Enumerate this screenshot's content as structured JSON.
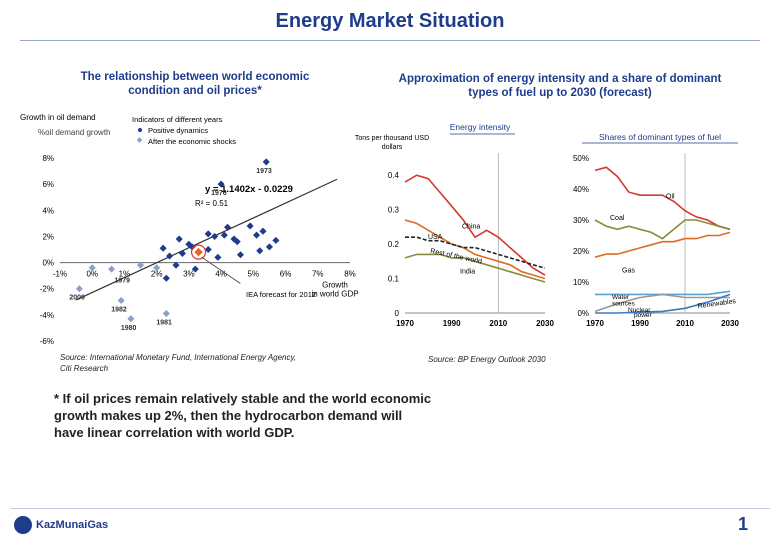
{
  "header": {
    "title": "Energy Market Situation"
  },
  "left_chart_title": "The relationship between world economic condition and oil prices*",
  "right_chart_title": "Approximation of energy intensity and a share of dominant types of fuel up to 2030 (forecast)",
  "left_source": "Source: International Monetary Fund, International Energy Agency, Citi Research",
  "right_source": "Source: BP Energy Outlook 2030",
  "footnote": "* If oil prices remain relatively stable and the world economic growth makes up 2%, then the hydrocarbon demand will have linear correlation with world GDP.",
  "logo": "KazMunaiGas",
  "page_number": "1",
  "colors": {
    "brand": "#1f3b8c",
    "oil": "#d6372e",
    "coal": "#8a8a3a",
    "gas": "#e06a20",
    "renewables": "#3a7abf",
    "scatter": "#1f3b8c"
  },
  "chart_data": [
    {
      "type": "scatter",
      "ylabel_top": "Growth in oil demand",
      "ylabel_secondary": "%oil demand growth",
      "xlabel": "Growth in world GDP in %",
      "legend_title": "Indicators of different years",
      "legend": [
        "Positive dynamics",
        "After the economic shocks"
      ],
      "equation": "y = 1.1402x - 0.0229",
      "r_squared": "R² = 0.51",
      "forecast_label": "IEA forecast for 2012",
      "xlim": [
        -1,
        8
      ],
      "ylim": [
        -6,
        8
      ],
      "x_ticks": [
        "-1%",
        "0%",
        "1%",
        "2%",
        "3%",
        "4%",
        "5%",
        "6%",
        "7%",
        "8%"
      ],
      "y_ticks": [
        "-6%",
        "-4%",
        "-2%",
        "0%",
        "2%",
        "4%",
        "6%",
        "8%"
      ],
      "trendline": {
        "slope": 1.1402,
        "intercept": -2.29
      },
      "positive_points": [
        [
          5.4,
          7.7
        ],
        [
          4.0,
          6.0
        ],
        [
          4.2,
          2.7
        ],
        [
          3.6,
          2.2
        ],
        [
          3.8,
          2.0
        ],
        [
          4.1,
          2.1
        ],
        [
          4.5,
          1.6
        ],
        [
          4.9,
          2.8
        ],
        [
          5.3,
          2.4
        ],
        [
          5.7,
          1.7
        ],
        [
          5.5,
          1.2
        ],
        [
          5.2,
          0.9
        ],
        [
          4.6,
          0.6
        ],
        [
          3.9,
          0.4
        ],
        [
          3.3,
          0.8
        ],
        [
          3.1,
          1.2
        ],
        [
          2.8,
          0.7
        ],
        [
          2.4,
          0.5
        ],
        [
          2.2,
          1.1
        ],
        [
          2.7,
          1.8
        ],
        [
          3.0,
          1.4
        ],
        [
          2.6,
          -0.2
        ],
        [
          2.3,
          -1.2
        ],
        [
          3.2,
          -0.5
        ],
        [
          3.6,
          1.0
        ],
        [
          5.1,
          2.1
        ],
        [
          4.4,
          1.8
        ]
      ],
      "shock_points": [
        [
          -0.4,
          -2.0
        ],
        [
          0.9,
          -2.9
        ],
        [
          1.2,
          -4.3
        ],
        [
          2.3,
          -3.9
        ],
        [
          0.0,
          -0.4
        ],
        [
          0.6,
          -0.5
        ],
        [
          1.5,
          -0.2
        ],
        [
          2.0,
          -0.4
        ]
      ],
      "forecast_point": [
        3.3,
        0.8
      ],
      "point_labels": [
        {
          "text": "1973",
          "x": 5.4,
          "y": 7.7
        },
        {
          "text": "1976",
          "x": 4.0,
          "y": 6.0
        },
        {
          "text": "1979",
          "x": 1.0,
          "y": -0.7
        },
        {
          "text": "2009",
          "x": -0.4,
          "y": -2.0
        },
        {
          "text": "1982",
          "x": 0.9,
          "y": -2.9
        },
        {
          "text": "1981",
          "x": 2.3,
          "y": -3.9
        },
        {
          "text": "1980",
          "x": 1.2,
          "y": -4.3
        }
      ]
    },
    {
      "type": "line",
      "title": "Energy intensity",
      "ylabel": "Tons per thousand USD dollars",
      "x_ticks": [
        "1970",
        "1990",
        "2010",
        "2030"
      ],
      "y_ticks": [
        "0",
        "0.1",
        "0.2",
        "0.3",
        "0.4"
      ],
      "xlim": [
        1970,
        2030
      ],
      "ylim": [
        0,
        0.45
      ],
      "series": [
        {
          "name": "China",
          "years": [
            1970,
            1975,
            1980,
            1985,
            1990,
            1995,
            2000,
            2005,
            2010,
            2015,
            2020,
            2025,
            2030
          ],
          "values": [
            0.38,
            0.4,
            0.39,
            0.35,
            0.31,
            0.27,
            0.22,
            0.24,
            0.22,
            0.19,
            0.16,
            0.13,
            0.11
          ],
          "color": "#d6372e"
        },
        {
          "name": "USA",
          "years": [
            1970,
            1975,
            1980,
            1985,
            1990,
            1995,
            2000,
            2005,
            2010,
            2015,
            2020,
            2025,
            2030
          ],
          "values": [
            0.27,
            0.26,
            0.24,
            0.22,
            0.2,
            0.19,
            0.17,
            0.16,
            0.15,
            0.14,
            0.12,
            0.11,
            0.1
          ],
          "color": "#e06a20"
        },
        {
          "name": "Rest of the world",
          "years": [
            1970,
            1975,
            1980,
            1985,
            1990,
            1995,
            2000,
            2005,
            2010,
            2015,
            2020,
            2025,
            2030
          ],
          "values": [
            0.22,
            0.22,
            0.21,
            0.21,
            0.2,
            0.19,
            0.19,
            0.18,
            0.17,
            0.16,
            0.15,
            0.14,
            0.13
          ],
          "color": "#222222",
          "dashed": true
        },
        {
          "name": "India",
          "years": [
            1970,
            1975,
            1980,
            1985,
            1990,
            1995,
            2000,
            2005,
            2010,
            2015,
            2020,
            2025,
            2030
          ],
          "values": [
            0.16,
            0.17,
            0.17,
            0.17,
            0.16,
            0.16,
            0.15,
            0.14,
            0.13,
            0.12,
            0.11,
            0.1,
            0.09
          ],
          "color": "#8a8a3a"
        }
      ]
    },
    {
      "type": "line",
      "title": "Shares of dominant types of fuel",
      "x_ticks": [
        "1970",
        "1990",
        "2010",
        "2030"
      ],
      "y_ticks": [
        "0%",
        "10%",
        "20%",
        "30%",
        "40%",
        "50%"
      ],
      "xlim": [
        1970,
        2030
      ],
      "ylim": [
        0,
        50
      ],
      "series": [
        {
          "name": "Oil",
          "years": [
            1970,
            1975,
            1980,
            1985,
            1990,
            1995,
            2000,
            2005,
            2010,
            2015,
            2020,
            2025,
            2030
          ],
          "values": [
            46,
            47,
            44,
            39,
            38,
            38,
            38,
            36,
            33,
            31,
            30,
            28,
            27
          ],
          "color": "#d6372e"
        },
        {
          "name": "Coal",
          "years": [
            1970,
            1975,
            1980,
            1985,
            1990,
            1995,
            2000,
            2005,
            2010,
            2015,
            2020,
            2025,
            2030
          ],
          "values": [
            30,
            28,
            27,
            28,
            27,
            26,
            24,
            27,
            30,
            30,
            29,
            28,
            27
          ],
          "color": "#8a8a3a"
        },
        {
          "name": "Gas",
          "years": [
            1970,
            1975,
            1980,
            1985,
            1990,
            1995,
            2000,
            2005,
            2010,
            2015,
            2020,
            2025,
            2030
          ],
          "values": [
            18,
            19,
            19,
            20,
            21,
            22,
            23,
            23,
            24,
            24,
            25,
            25,
            26
          ],
          "color": "#e06a20"
        },
        {
          "name": "Water sources",
          "years": [
            1970,
            1980,
            1990,
            2000,
            2010,
            2020,
            2030
          ],
          "values": [
            6,
            6,
            6,
            6,
            6,
            6,
            7
          ],
          "color": "#5aa0d0"
        },
        {
          "name": "Nuclear power",
          "years": [
            1970,
            1980,
            1990,
            2000,
            2010,
            2020,
            2030
          ],
          "values": [
            0.5,
            3,
            5,
            6,
            5,
            5,
            5
          ],
          "color": "#999999"
        },
        {
          "name": "Renewables",
          "years": [
            1970,
            1980,
            1990,
            2000,
            2010,
            2020,
            2030
          ],
          "values": [
            0,
            0,
            0.3,
            0.5,
            1.5,
            3.5,
            6
          ],
          "color": "#3a7abf"
        }
      ]
    }
  ]
}
